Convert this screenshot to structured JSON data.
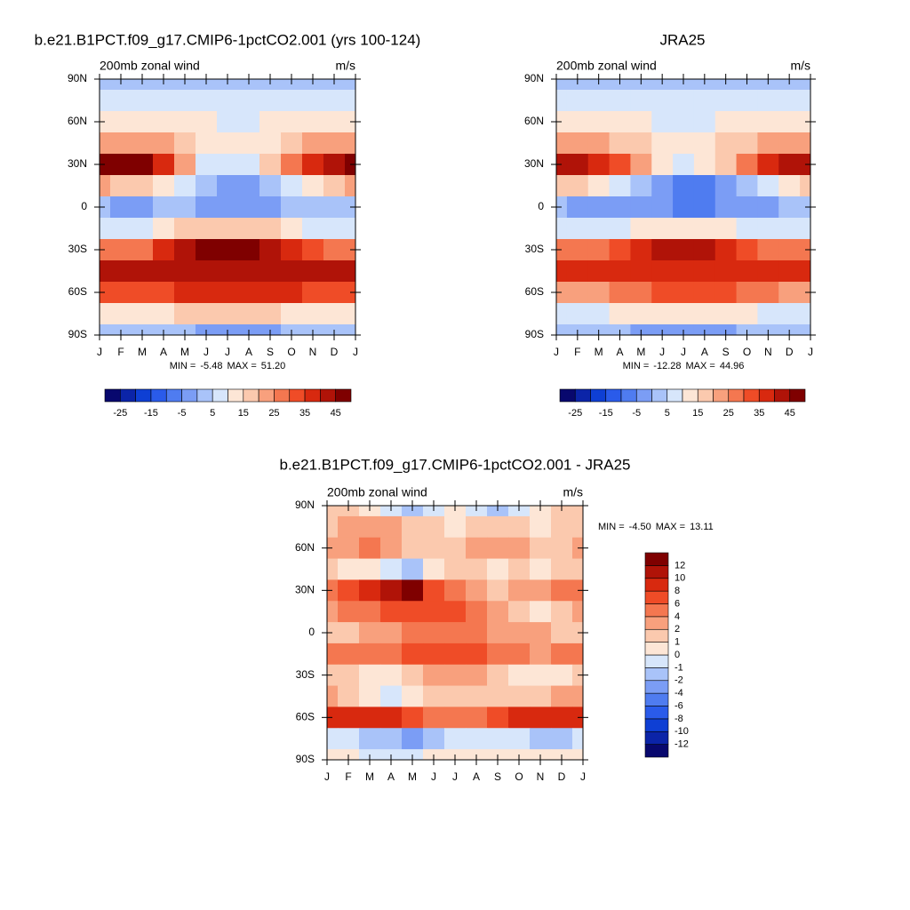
{
  "chart_data": [
    {
      "type": "contour",
      "title": "b.e21.B1PCT.f09_g17.CMIP6-1pctCO2.001 (yrs 100-124)",
      "subtitle_left": "200mb zonal wind",
      "subtitle_right": "m/s",
      "x": [
        "J",
        "F",
        "M",
        "A",
        "M",
        "J",
        "J",
        "A",
        "S",
        "O",
        "N",
        "D",
        "J"
      ],
      "y": [
        90,
        75,
        60,
        45,
        30,
        15,
        0,
        -15,
        -30,
        -45,
        -60,
        -75,
        -90
      ],
      "ylim": [
        -90,
        90
      ],
      "yticks": [
        {
          "value": 90,
          "label": "90N"
        },
        {
          "value": 60,
          "label": "60N"
        },
        {
          "value": 30,
          "label": "30N"
        },
        0,
        {
          "value": -30,
          "label": "30S"
        },
        {
          "value": -60,
          "label": "60S"
        },
        {
          "value": -90,
          "label": "90S"
        }
      ],
      "values": [
        [
          3,
          3,
          3,
          3,
          3,
          3,
          3,
          3,
          3,
          3,
          3,
          3,
          3
        ],
        [
          8,
          8,
          8,
          8,
          7,
          6,
          5,
          6,
          7,
          8,
          8,
          8,
          8
        ],
        [
          13,
          13,
          13,
          13,
          12,
          10,
          9,
          9,
          10,
          11,
          12,
          13,
          13
        ],
        [
          24,
          24,
          22,
          20,
          16,
          12,
          10,
          11,
          14,
          18,
          22,
          24,
          24
        ],
        [
          48,
          50,
          45,
          35,
          20,
          8,
          5,
          8,
          15,
          25,
          35,
          42,
          48
        ],
        [
          20,
          18,
          15,
          10,
          5,
          0,
          -5,
          -5,
          0,
          5,
          10,
          15,
          20
        ],
        [
          0,
          -2,
          -1,
          0,
          0,
          -2,
          -3,
          -3,
          -2,
          0,
          0,
          0,
          0
        ],
        [
          5,
          5,
          5,
          10,
          15,
          15,
          15,
          15,
          15,
          10,
          8,
          5,
          5
        ],
        [
          25,
          25,
          28,
          35,
          42,
          45,
          50,
          48,
          42,
          35,
          30,
          28,
          25
        ],
        [
          40,
          40,
          40,
          40,
          42,
          42,
          42,
          42,
          42,
          42,
          40,
          40,
          40
        ],
        [
          30,
          30,
          30,
          30,
          35,
          35,
          35,
          35,
          35,
          35,
          30,
          30,
          30
        ],
        [
          10,
          10,
          10,
          12,
          15,
          18,
          18,
          18,
          15,
          12,
          10,
          10,
          10
        ],
        [
          2,
          2,
          2,
          2,
          0,
          -3,
          -5,
          -5,
          -3,
          0,
          2,
          2,
          2
        ]
      ],
      "levels": [
        -25,
        -20,
        -15,
        -10,
        -5,
        0,
        5,
        10,
        15,
        20,
        25,
        30,
        35,
        40,
        45
      ],
      "colors": [
        "#08086e",
        "#0b24a8",
        "#0e3fd4",
        "#2a5bea",
        "#4f7cf0",
        "#7b9df5",
        "#a9c3f9",
        "#d7e6fb",
        "#fde6d6",
        "#fbc9ae",
        "#f8a07d",
        "#f47750",
        "#ef4c27",
        "#d8290f",
        "#b01308",
        "#7f0000"
      ],
      "colorbar_labels": [
        -25,
        -15,
        -5,
        5,
        15,
        25,
        35,
        45
      ],
      "colorbar_orientation": "horizontal",
      "stats": [
        {
          "label": "MIN =",
          "value": -5.48,
          "value_label": "-5.48"
        },
        {
          "label": "MAX =",
          "value": 51.2,
          "value_label": "51.20"
        }
      ]
    },
    {
      "type": "contour",
      "title": "JRA25",
      "subtitle_left": "200mb zonal wind",
      "subtitle_right": "m/s",
      "x": [
        "J",
        "F",
        "M",
        "A",
        "M",
        "J",
        "J",
        "A",
        "S",
        "O",
        "N",
        "D",
        "J"
      ],
      "y": [
        90,
        75,
        60,
        45,
        30,
        15,
        0,
        -15,
        -30,
        -45,
        -60,
        -75,
        -90
      ],
      "ylim": [
        -90,
        90
      ],
      "yticks": [
        {
          "value": 90,
          "label": "90N"
        },
        {
          "value": 60,
          "label": "60N"
        },
        {
          "value": 30,
          "label": "30N"
        },
        0,
        {
          "value": -30,
          "label": "30S"
        },
        {
          "value": -60,
          "label": "60S"
        },
        {
          "value": -90,
          "label": "90S"
        }
      ],
      "values": [
        [
          3,
          3,
          3,
          3,
          3,
          3,
          3,
          3,
          3,
          3,
          3,
          3,
          3
        ],
        [
          8,
          8,
          8,
          8,
          8,
          7,
          6,
          7,
          8,
          8,
          8,
          8,
          8
        ],
        [
          12,
          12,
          12,
          12,
          10,
          9,
          9,
          9,
          10,
          11,
          12,
          12,
          12
        ],
        [
          22,
          22,
          20,
          18,
          15,
          12,
          10,
          12,
          15,
          18,
          20,
          22,
          22
        ],
        [
          42,
          42,
          38,
          30,
          20,
          12,
          8,
          10,
          15,
          25,
          35,
          40,
          42
        ],
        [
          15,
          15,
          10,
          5,
          0,
          -5,
          -10,
          -10,
          -5,
          0,
          5,
          10,
          15
        ],
        [
          0,
          -2,
          -3,
          -2,
          -2,
          -5,
          -7,
          -7,
          -5,
          -3,
          -2,
          0,
          0
        ],
        [
          5,
          5,
          5,
          8,
          12,
          12,
          12,
          12,
          10,
          8,
          5,
          5,
          5
        ],
        [
          25,
          25,
          25,
          30,
          38,
          40,
          42,
          42,
          38,
          32,
          28,
          25,
          25
        ],
        [
          35,
          35,
          35,
          35,
          38,
          38,
          38,
          38,
          38,
          38,
          35,
          35,
          35
        ],
        [
          22,
          22,
          22,
          25,
          28,
          30,
          30,
          30,
          30,
          28,
          25,
          22,
          22
        ],
        [
          8,
          8,
          8,
          10,
          12,
          12,
          12,
          12,
          12,
          10,
          8,
          8,
          8
        ],
        [
          0,
          0,
          0,
          0,
          -2,
          -3,
          -3,
          -3,
          -2,
          0,
          0,
          0,
          0
        ]
      ],
      "levels": [
        -25,
        -20,
        -15,
        -10,
        -5,
        0,
        5,
        10,
        15,
        20,
        25,
        30,
        35,
        40,
        45
      ],
      "colors": [
        "#08086e",
        "#0b24a8",
        "#0e3fd4",
        "#2a5bea",
        "#4f7cf0",
        "#7b9df5",
        "#a9c3f9",
        "#d7e6fb",
        "#fde6d6",
        "#fbc9ae",
        "#f8a07d",
        "#f47750",
        "#ef4c27",
        "#d8290f",
        "#b01308",
        "#7f0000"
      ],
      "colorbar_labels": [
        -25,
        -15,
        -5,
        5,
        15,
        25,
        35,
        45
      ],
      "colorbar_orientation": "horizontal",
      "stats": [
        {
          "label": "MIN =",
          "value": -12.28,
          "value_label": "-12.28"
        },
        {
          "label": "MAX =",
          "value": 44.96,
          "value_label": "44.96"
        }
      ]
    },
    {
      "type": "contour",
      "title": "b.e21.B1PCT.f09_g17.CMIP6-1pctCO2.001 - JRA25",
      "subtitle_left": "200mb zonal wind",
      "subtitle_right": "m/s",
      "x": [
        "J",
        "F",
        "M",
        "A",
        "M",
        "J",
        "J",
        "A",
        "S",
        "O",
        "N",
        "D",
        "J"
      ],
      "y": [
        90,
        75,
        60,
        45,
        30,
        15,
        0,
        -15,
        -30,
        -45,
        -60,
        -75,
        -90
      ],
      "ylim": [
        -90,
        90
      ],
      "yticks": [
        {
          "value": 90,
          "label": "90N"
        },
        {
          "value": 60,
          "label": "60N"
        },
        {
          "value": 30,
          "label": "30N"
        },
        0,
        {
          "value": -30,
          "label": "30S"
        },
        {
          "value": -60,
          "label": "60S"
        },
        {
          "value": -90,
          "label": "90S"
        }
      ],
      "values": [
        [
          1,
          1,
          0,
          -1,
          -2,
          -1,
          0,
          -1,
          -2,
          -1,
          0,
          1,
          1
        ],
        [
          1,
          2,
          3,
          2,
          1,
          1,
          0,
          1,
          1,
          1,
          0,
          1,
          1
        ],
        [
          2,
          3,
          4,
          2,
          1,
          1,
          1,
          2,
          2,
          2,
          1,
          1,
          2
        ],
        [
          1,
          0,
          0,
          -1,
          -2,
          0,
          1,
          1,
          0,
          1,
          0,
          1,
          1
        ],
        [
          4,
          6,
          8,
          10,
          12,
          6,
          4,
          2,
          1,
          2,
          2,
          4,
          4
        ],
        [
          2,
          4,
          5,
          6,
          6,
          6,
          6,
          4,
          2,
          1,
          0,
          1,
          2
        ],
        [
          1,
          1,
          2,
          2,
          4,
          5,
          5,
          4,
          3,
          3,
          2,
          1,
          1
        ],
        [
          4,
          4,
          5,
          5,
          6,
          6,
          7,
          6,
          5,
          4,
          3,
          4,
          4
        ],
        [
          1,
          1,
          0,
          0,
          1,
          2,
          2,
          2,
          1,
          0,
          0,
          0,
          1
        ],
        [
          2,
          1,
          0,
          -1,
          0,
          1,
          1,
          1,
          1,
          1,
          1,
          2,
          2
        ],
        [
          8,
          8,
          8,
          8,
          7,
          5,
          4,
          5,
          6,
          8,
          8,
          8,
          8
        ],
        [
          -1,
          -1,
          -2,
          -2,
          -3,
          -2,
          -1,
          -1,
          -1,
          -1,
          -2,
          -2,
          -1
        ],
        [
          0,
          0,
          -1,
          -1,
          -1,
          0,
          0,
          0,
          0,
          0,
          0,
          0,
          0
        ]
      ],
      "levels": [
        -12,
        -10,
        -8,
        -6,
        -4,
        -2,
        -1,
        0,
        1,
        2,
        4,
        6,
        8,
        10,
        12
      ],
      "colors": [
        "#08086e",
        "#0b24a8",
        "#0e3fd4",
        "#2a5bea",
        "#4f7cf0",
        "#7b9df5",
        "#a9c3f9",
        "#d7e6fb",
        "#fde6d6",
        "#fbc9ae",
        "#f8a07d",
        "#f47750",
        "#ef4c27",
        "#d8290f",
        "#b01308",
        "#7f0000"
      ],
      "colorbar_labels": [
        -12,
        -10,
        -8,
        -6,
        -4,
        -2,
        -1,
        0,
        1,
        2,
        4,
        6,
        8,
        10,
        12
      ],
      "colorbar_orientation": "vertical",
      "stats": [
        {
          "label": "MIN =",
          "value": -4.5,
          "value_label": "-4.50"
        },
        {
          "label": "MAX =",
          "value": 13.11,
          "value_label": "13.11"
        }
      ]
    }
  ]
}
